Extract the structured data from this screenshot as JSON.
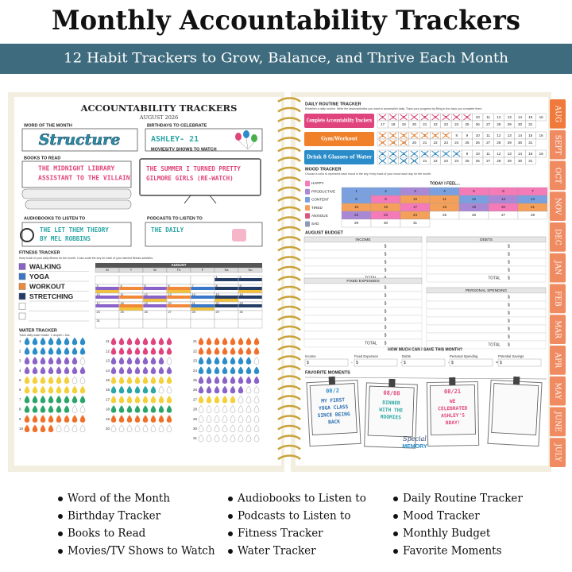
{
  "header": {
    "title": "Monthly Accountability Trackers",
    "subtitle": "12 Habit Trackers to Grow, Balance, and Thrive Each Month"
  },
  "left_page": {
    "title": "ACCOUNTABILITY TRACKERS",
    "date": "AUGUST 2026",
    "word_of_month": {
      "label": "WORD OF THE MONTH",
      "text": "Structure"
    },
    "birthdays": {
      "label": "BIRTHDAYS TO CELEBRATE",
      "text": "ASHLEY- 21"
    },
    "books": {
      "label": "BOOKS TO READ",
      "lines": [
        "THE MIDNIGHT LIBRARY",
        "ASSISTANT TO THE VILLAIN"
      ]
    },
    "movies": {
      "label": "MOVIES/TV SHOWS TO WATCH",
      "lines": [
        "THE SUMMER I TURNED PRETTY",
        "GILMORE GIRLS (RE-WATCH)"
      ]
    },
    "audiobooks": {
      "label": "AUDIOBOOKS TO LISTEN TO",
      "lines": [
        "THE LET THEM THEORY",
        "BY MEL ROBBINS"
      ]
    },
    "podcasts": {
      "label": "PODCASTS TO LISTEN TO",
      "lines": [
        "THE DAILY"
      ]
    },
    "fitness": {
      "label": "FITNESS TRACKER",
      "description": "Keep track of your daily fitness for the month. Color-code the key for each of your labeled fitness activities.",
      "activities": [
        "WALKING",
        "YOGA",
        "WORKOUT",
        "STRETCHING"
      ],
      "month": "AUGUST",
      "weekdays": [
        "M",
        "T",
        "W",
        "Th",
        "F",
        "Sa",
        "Su"
      ]
    },
    "water": {
      "label": "WATER TRACKER",
      "description": "Track daily water intake. 1 droplet = 8oz."
    }
  },
  "days": [
    1,
    2,
    3,
    4,
    5,
    6,
    7,
    8,
    9,
    10,
    11,
    12,
    13,
    14,
    15,
    16,
    17,
    18,
    19,
    20,
    21,
    22,
    23,
    24,
    25,
    26,
    27,
    28,
    29,
    30,
    31
  ],
  "right_page": {
    "routine": {
      "label": "DAILY ROUTINE TRACKER",
      "description": "Establish a daily routine. Write the tasks/activities you want to accomplish daily. Track your progress by filling in the days you complete them.",
      "tasks": [
        "Complete Accountability Trackers",
        "Gym/Workout",
        "Drink 8 Glasses of Water"
      ]
    },
    "mood": {
      "label": "MOOD TRACKER",
      "description": "Choose a color to represent each mood in the key. Keep track of your mood each day for the month.",
      "moods": [
        "HAPPY",
        "PRODUCTIVE",
        "CONTENT",
        "TIRED",
        "ANXIOUS",
        "SAD"
      ],
      "heading": "TODAY I FEEL..."
    },
    "budget": {
      "label": "AUGUST BUDGET",
      "income": "INCOME",
      "debts": "DEBTS",
      "fixed": "FIXED EXPENSES",
      "personal": "PERSONAL SPENDING",
      "currency": "$",
      "total": "TOTAL"
    },
    "savings": {
      "question": "HOW MUCH CAN I SAVE THIS MONTH?",
      "terms": [
        "Income",
        "Fixed Expenses",
        "Debts",
        "Personal Spending",
        "Potential Savings"
      ],
      "minus": "-",
      "equals": "="
    },
    "moments": {
      "label": "FAVORITE MOMENTS",
      "notes": [
        {
          "date": "08/2",
          "lines": [
            "MY FIRST",
            "YOGA CLASS",
            "SINCE BEING",
            "BACK"
          ]
        },
        {
          "date": "08/08",
          "lines": [
            "DINNER",
            "WITH THE",
            "ROOMIES"
          ]
        },
        {
          "date": "08/21",
          "lines": [
            "WE",
            "CELEBRATED",
            "ASHLEY'S",
            "BDAY!"
          ]
        }
      ],
      "sticker": [
        "Special",
        "MEMORY"
      ]
    }
  },
  "tabs": [
    "AUG",
    "SEPT",
    "OCT",
    "NOV",
    "DEC",
    "JAN",
    "FEB",
    "MAR",
    "APR",
    "MAY",
    "JUNE",
    "JULY"
  ],
  "features": [
    [
      "Word of the Month",
      "Birthday Tracker",
      "Books to Read",
      "Movies/TV Shows to Watch"
    ],
    [
      "Audiobooks to Listen to",
      "Podcasts to Listen to",
      "Fitness Tracker",
      "Water Tracker"
    ],
    [
      "Daily Routine Tracker",
      "Mood Tracker",
      "Monthly Budget",
      "Favorite Moments"
    ]
  ]
}
